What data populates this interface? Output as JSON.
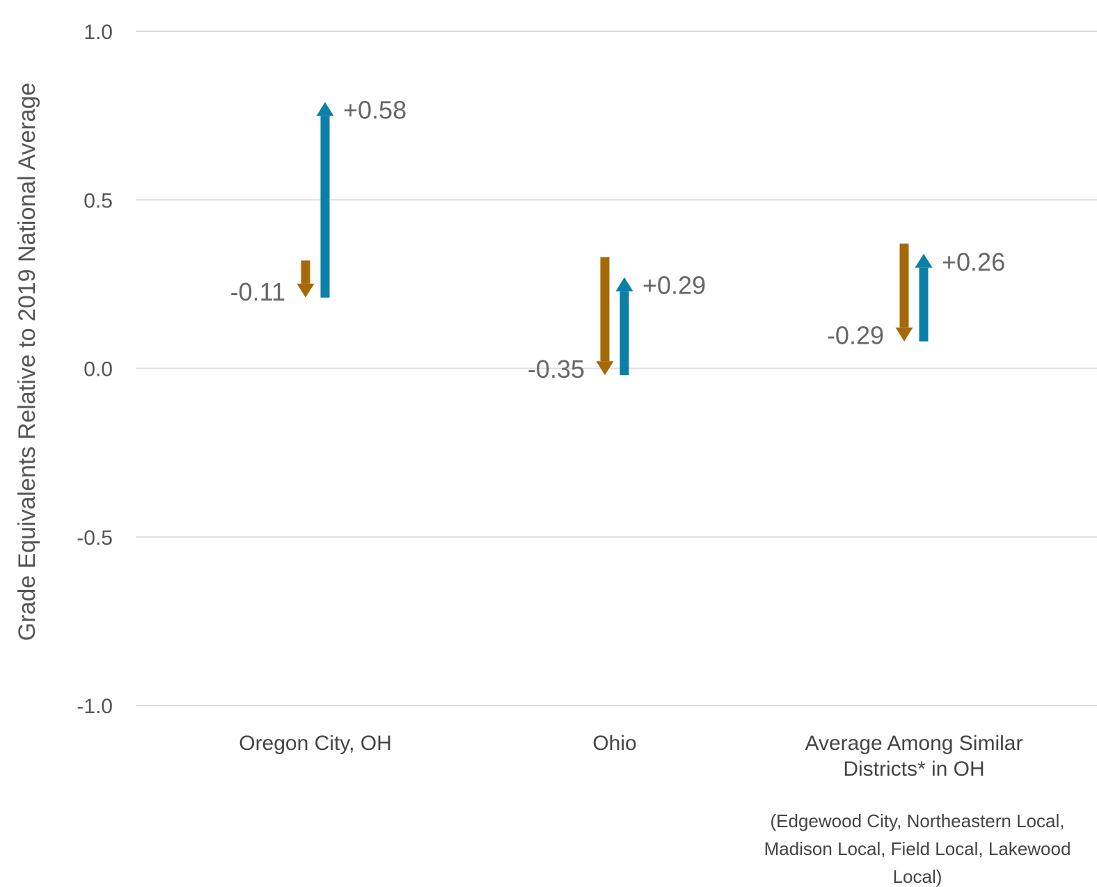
{
  "chart_data": {
    "type": "arrow",
    "ylabel": "Grade Equivalents Relative to 2019 National Average",
    "ylim": [
      -1.0,
      1.0
    ],
    "yticks": [
      {
        "value": 1.0,
        "label": "1.0"
      },
      {
        "value": 0.5,
        "label": "0.5"
      },
      {
        "value": 0.0,
        "label": "0.0"
      },
      {
        "value": -0.5,
        "label": "-0.5"
      },
      {
        "value": -1.0,
        "label": "-1.0"
      }
    ],
    "grid": true,
    "colors": {
      "decline": "#A5690A",
      "recovery": "#0A7FA8",
      "grid": "#DDDDDD"
    },
    "categories": [
      {
        "label_lines": [
          "Oregon City, OH"
        ],
        "decline": {
          "from": 0.32,
          "to": 0.21,
          "label": "-0.11"
        },
        "recovery": {
          "from": 0.21,
          "to": 0.79,
          "label": "+0.58"
        }
      },
      {
        "label_lines": [
          "Ohio"
        ],
        "decline": {
          "from": 0.33,
          "to": -0.02,
          "label": "-0.35"
        },
        "recovery": {
          "from": -0.02,
          "to": 0.27,
          "label": "+0.29"
        }
      },
      {
        "label_lines": [
          "Average Among Similar",
          "Districts* in OH"
        ],
        "note_lines": [
          "(Edgewood City, Northeastern Local,",
          "Madison Local, Field Local, Lakewood",
          "Local)"
        ],
        "decline": {
          "from": 0.37,
          "to": 0.08,
          "label": "-0.29"
        },
        "recovery": {
          "from": 0.08,
          "to": 0.34,
          "label": "+0.26"
        }
      }
    ]
  }
}
